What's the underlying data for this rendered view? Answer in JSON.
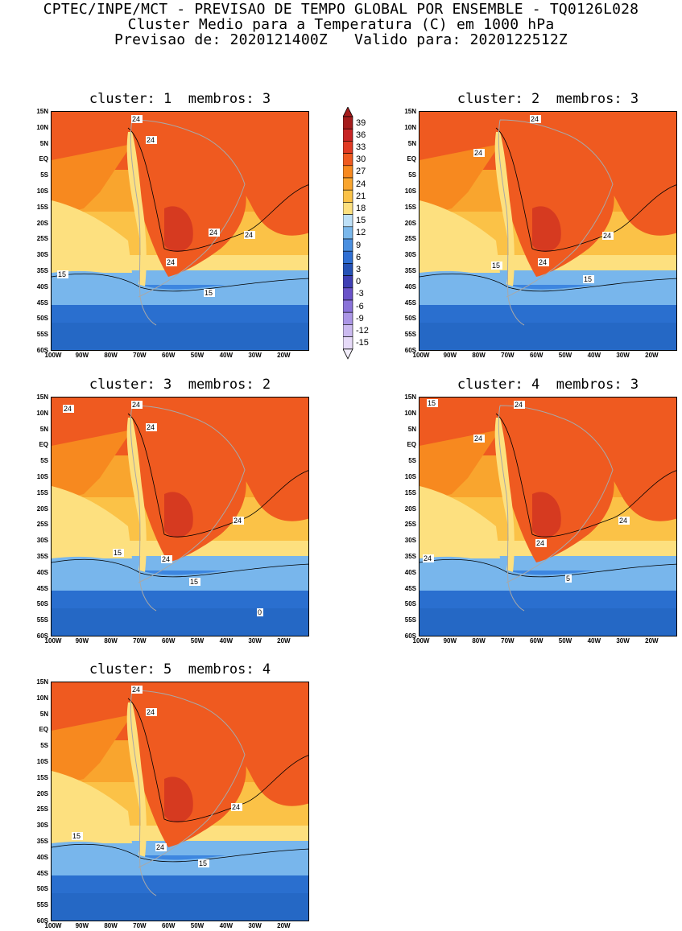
{
  "header": {
    "line1": "CPTEC/INPE/MCT - PREVISAO DE TEMPO GLOBAL POR ENSEMBLE - TQ0126L028",
    "line2": "Cluster Medio para a Temperatura (C) em 1000 hPa",
    "line3": "Previsao de: 2020121400Z   Valido para: 2020122512Z"
  },
  "axes": {
    "lat_labels": [
      "15N",
      "10N",
      "5N",
      "EQ",
      "5S",
      "10S",
      "15S",
      "20S",
      "25S",
      "30S",
      "35S",
      "40S",
      "45S",
      "50S",
      "55S",
      "60S"
    ],
    "lon_labels": [
      "100W",
      "90W",
      "80W",
      "70W",
      "60W",
      "50W",
      "40W",
      "30W",
      "20W"
    ]
  },
  "colorbar": {
    "labels": [
      "39",
      "36",
      "33",
      "30",
      "27",
      "24",
      "21",
      "18",
      "15",
      "12",
      "9",
      "6",
      "3",
      "0",
      "-3",
      "-6",
      "-9",
      "-12",
      "-15"
    ],
    "colors": [
      "#a51c1c",
      "#c82424",
      "#e13a23",
      "#ef5a20",
      "#f7891f",
      "#f9a52e",
      "#fbc247",
      "#fde07f",
      "#bde0f7",
      "#7ab8ec",
      "#4a8fe0",
      "#2f6fd3",
      "#2552b6",
      "#3f3fb5",
      "#6a53c9",
      "#8a73d9",
      "#ab96e6",
      "#cbbaf0",
      "#e6daf8"
    ]
  },
  "panels": [
    {
      "id": 1,
      "title": "cluster: 1  membros: 3",
      "labels": [
        "24",
        "24",
        "24",
        "24",
        "24",
        "15",
        "15"
      ]
    },
    {
      "id": 2,
      "title": "cluster: 2  membros: 3",
      "labels": [
        "24",
        "24",
        "24",
        "24",
        "15",
        "15"
      ]
    },
    {
      "id": 3,
      "title": "cluster: 3  membros: 2",
      "labels": [
        "24",
        "24",
        "24",
        "24",
        "24",
        "15",
        "15",
        "0"
      ]
    },
    {
      "id": 4,
      "title": "cluster: 4  membros: 3",
      "labels": [
        "24",
        "24",
        "24",
        "24",
        "24",
        "5",
        "15"
      ]
    },
    {
      "id": 5,
      "title": "cluster: 5  membros: 4",
      "labels": [
        "24",
        "24",
        "24",
        "15",
        "24",
        "15"
      ]
    }
  ]
}
